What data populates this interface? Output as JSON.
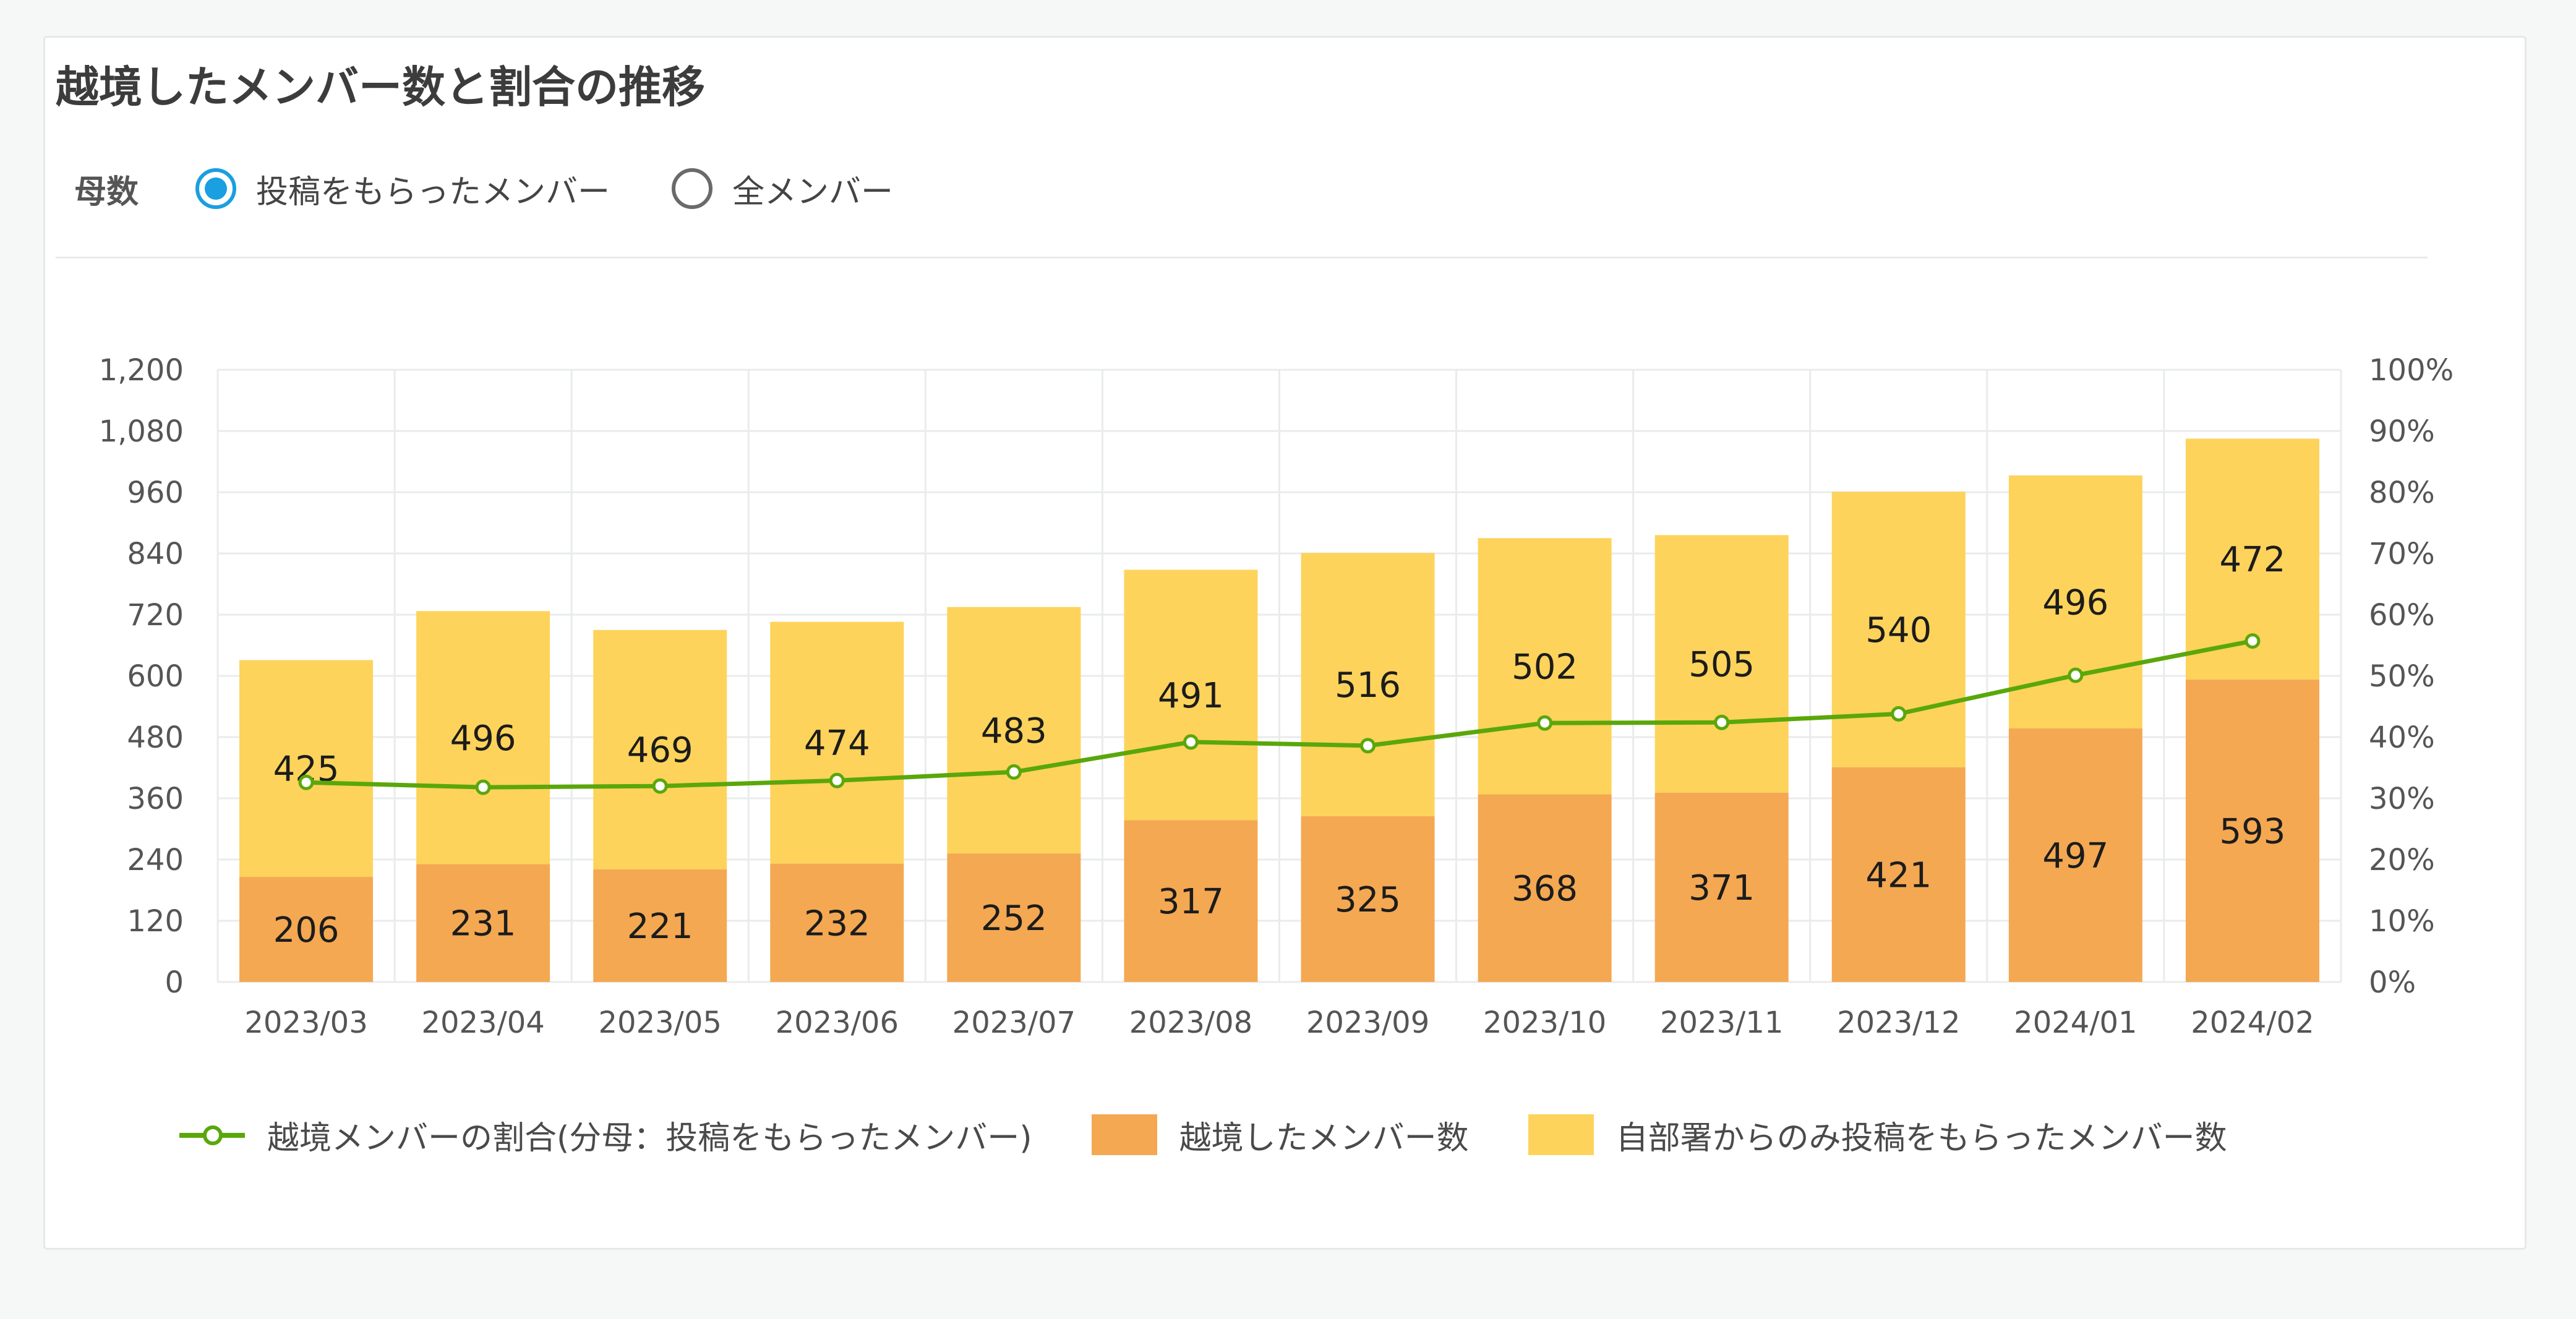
{
  "title": "越境したメンバー数と割合の推移",
  "controls": {
    "label": "母数",
    "options": [
      {
        "label": "投稿をもらったメンバー",
        "checked": true
      },
      {
        "label": "全メンバー",
        "checked": false
      }
    ],
    "accent_color": "#1a9fe0"
  },
  "legend": {
    "line": "越境メンバーの割合(分母：投稿をもらったメンバー)",
    "bar_bottom": "越境したメンバー数",
    "bar_top": "自部署からのみ投稿をもらったメンバー数"
  },
  "chart_data": {
    "type": "bar",
    "stacked": true,
    "categories": [
      "2023/03",
      "2023/04",
      "2023/05",
      "2023/06",
      "2023/07",
      "2023/08",
      "2023/09",
      "2023/10",
      "2023/11",
      "2023/12",
      "2024/01",
      "2024/02"
    ],
    "series": [
      {
        "name": "越境したメンバー数",
        "values": [
          206,
          231,
          221,
          232,
          252,
          317,
          325,
          368,
          371,
          421,
          497,
          593
        ],
        "color": "#f4a852"
      },
      {
        "name": "自部署からのみ投稿をもらったメンバー数",
        "values": [
          425,
          496,
          469,
          474,
          483,
          491,
          516,
          502,
          505,
          540,
          496,
          472
        ],
        "color": "#fdd35b"
      }
    ],
    "line_series": {
      "name": "越境メンバーの割合(分母：投稿をもらったメンバー)",
      "axis": "right",
      "values": [
        32.6,
        31.8,
        32.0,
        32.9,
        34.3,
        39.2,
        38.6,
        42.3,
        42.4,
        43.8,
        50.1,
        55.7
      ],
      "color": "#5aa70b"
    },
    "y_left": {
      "min": 0,
      "max": 1200,
      "ticks": [
        "0",
        "120",
        "240",
        "360",
        "480",
        "600",
        "720",
        "840",
        "960",
        "1,080",
        "1,200"
      ]
    },
    "y_right": {
      "min": 0,
      "max": 100,
      "ticks": [
        "0%",
        "10%",
        "20%",
        "30%",
        "40%",
        "50%",
        "60%",
        "70%",
        "80%",
        "90%",
        "100%"
      ]
    },
    "grid": true,
    "legend_position": "bottom"
  }
}
